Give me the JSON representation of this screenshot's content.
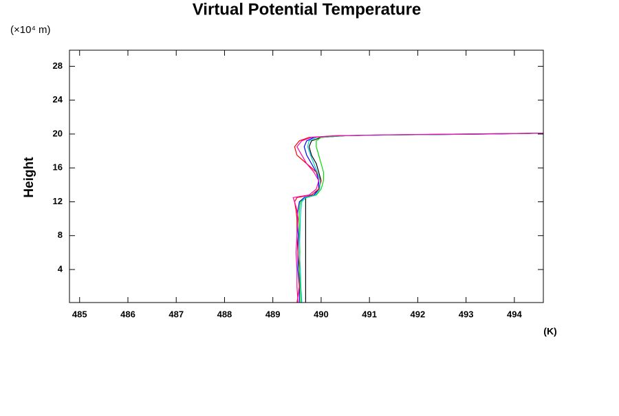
{
  "chart_data": {
    "type": "profile",
    "title": "Virtual Potential Temperature",
    "y_label": "Height",
    "y_unit": "(×10⁴ m)",
    "x_unit": "(K)",
    "xlim": [
      484.79,
      494.6
    ],
    "ylim": [
      0.1,
      29.9
    ],
    "xticks": [
      485,
      486,
      487,
      488,
      489,
      490,
      491,
      492,
      493,
      494
    ],
    "yticks": [
      4,
      8,
      12,
      16,
      20,
      24,
      28
    ],
    "y": [
      0.1,
      2,
      4,
      6,
      8,
      10,
      11,
      12,
      12.5,
      12.8,
      13.5,
      14.5,
      15.5,
      16.5,
      17.5,
      18.5,
      19.2,
      19.6,
      19.8,
      19.9,
      20.0,
      20.1
    ],
    "series": [
      {
        "color": "#000000",
        "values": [
          489.68,
          489.68,
          489.68,
          489.68,
          489.68,
          489.68,
          489.68,
          489.68,
          489.68,
          489.85,
          489.95,
          490.0,
          489.95,
          489.9,
          489.8,
          489.75,
          489.8,
          490.0,
          490.5,
          491.5,
          493.5,
          494.6
        ]
      },
      {
        "color": "#0000ff",
        "values": [
          489.55,
          489.55,
          489.52,
          489.52,
          489.53,
          489.5,
          489.52,
          489.55,
          489.65,
          489.85,
          489.95,
          489.95,
          489.9,
          489.8,
          489.7,
          489.65,
          489.7,
          489.85,
          490.4,
          491.5,
          493.5,
          494.6
        ]
      },
      {
        "color": "#ff0000",
        "values": [
          489.5,
          489.55,
          489.55,
          489.52,
          489.5,
          489.5,
          489.48,
          489.45,
          489.5,
          489.8,
          489.95,
          490.0,
          489.9,
          489.7,
          489.5,
          489.45,
          489.55,
          489.75,
          490.3,
          491.3,
          493.0,
          494.6
        ]
      },
      {
        "color": "#00dd00",
        "values": [
          489.58,
          489.57,
          489.55,
          489.56,
          489.55,
          489.54,
          489.55,
          489.57,
          489.7,
          489.9,
          490.0,
          490.05,
          490.05,
          490.0,
          489.95,
          489.9,
          489.9,
          490.0,
          490.5,
          491.4,
          493.2,
          494.6
        ]
      },
      {
        "color": "#00cccc",
        "values": [
          489.6,
          489.58,
          489.57,
          489.55,
          489.56,
          489.57,
          489.58,
          489.6,
          489.68,
          489.88,
          489.97,
          489.98,
          489.92,
          489.85,
          489.78,
          489.72,
          489.75,
          489.9,
          490.45,
          491.6,
          493.4,
          494.6
        ]
      },
      {
        "color": "#ff00aa",
        "values": [
          489.52,
          489.5,
          489.5,
          489.48,
          489.5,
          489.52,
          489.5,
          489.45,
          489.42,
          489.75,
          489.9,
          489.95,
          489.85,
          489.7,
          489.6,
          489.5,
          489.6,
          489.8,
          490.35,
          491.2,
          493.1,
          494.6
        ]
      }
    ]
  }
}
